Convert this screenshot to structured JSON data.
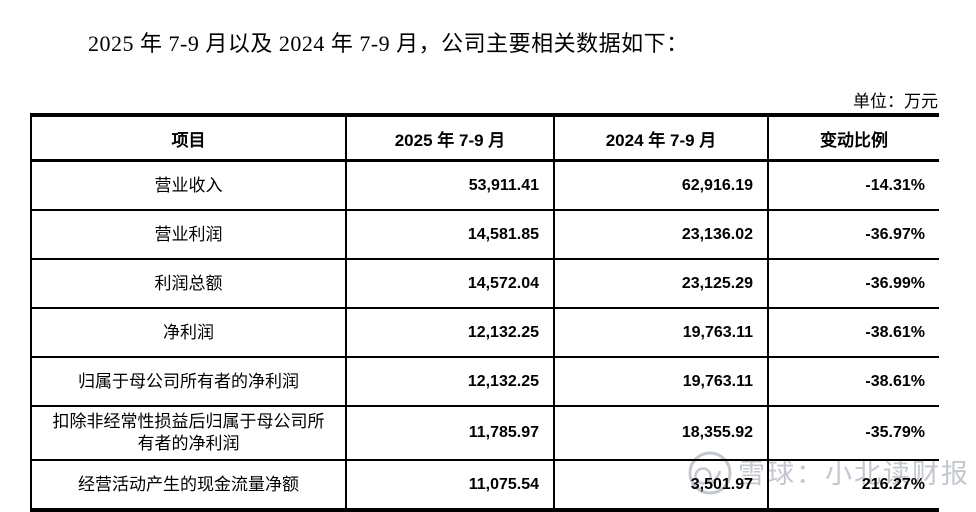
{
  "page": {
    "title": "2025 年 7-9 月以及 2024 年 7-9 月，公司主要相关数据如下：",
    "unit_label": "单位：万元"
  },
  "table": {
    "headers": [
      "项目",
      "2025 年 7-9 月",
      "2024 年 7-9 月",
      "变动比例"
    ],
    "rows": [
      {
        "label": "营业收入",
        "v2025": "53,911.41",
        "v2024": "62,916.19",
        "change": "-14.31%"
      },
      {
        "label": "营业利润",
        "v2025": "14,581.85",
        "v2024": "23,136.02",
        "change": "-36.97%"
      },
      {
        "label": "利润总额",
        "v2025": "14,572.04",
        "v2024": "23,125.29",
        "change": "-36.99%"
      },
      {
        "label": "净利润",
        "v2025": "12,132.25",
        "v2024": "19,763.11",
        "change": "-38.61%"
      },
      {
        "label": "归属于母公司所有者的净利润",
        "v2025": "12,132.25",
        "v2024": "19,763.11",
        "change": "-38.61%"
      },
      {
        "label": "扣除非经常性损益后归属于母公司所有者的净利润",
        "v2025": "11,785.97",
        "v2024": "18,355.92",
        "change": "-35.79%"
      },
      {
        "label": "经营活动产生的现金流量净额",
        "v2025": "11,075.54",
        "v2024": "3,501.97",
        "change": "216.27%"
      }
    ]
  },
  "watermark": {
    "text": "雪球：小北读财报",
    "icon": "snowball-logo-icon",
    "color": "#c3c7ce"
  }
}
